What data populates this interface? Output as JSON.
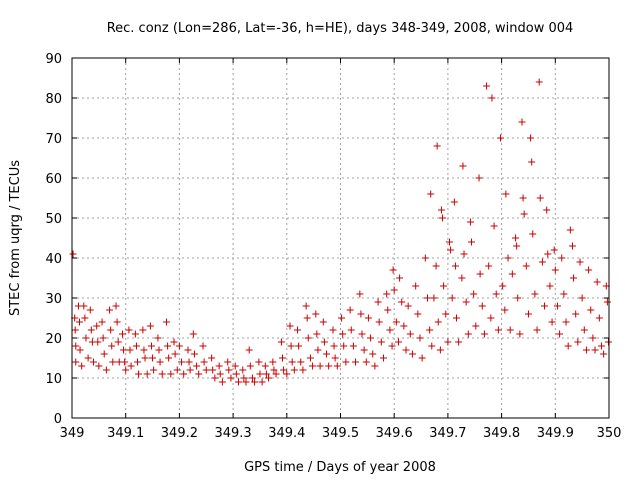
{
  "chart_data": {
    "type": "scatter",
    "title": "Rec. conz (Lon=286, Lat=-36, h=HE), days 348-349, 2008, window 004",
    "xlabel": "GPS time / Days of year 2008",
    "ylabel": "STEC from uqrg / TECUs",
    "xlim": [
      349,
      350
    ],
    "ylim": [
      0,
      90
    ],
    "xticks": [
      349,
      349.1,
      349.2,
      349.3,
      349.4,
      349.5,
      349.6,
      349.7,
      349.8,
      349.9,
      350
    ],
    "xtick_labels": [
      "349",
      "349.1",
      "349.2",
      "349.3",
      "349.4",
      "349.5",
      "349.6",
      "349.7",
      "349.8",
      "349.9",
      "350"
    ],
    "yticks": [
      0,
      10,
      20,
      30,
      40,
      50,
      60,
      70,
      80,
      90
    ],
    "ytick_labels": [
      "0",
      "10",
      "20",
      "30",
      "40",
      "50",
      "60",
      "70",
      "80",
      "90"
    ],
    "grid": true,
    "marker": "+",
    "color": "#cc0000",
    "series": [
      {
        "name": "STEC",
        "points": [
          [
            349.002,
            41
          ],
          [
            349.005,
            25
          ],
          [
            349.006,
            22
          ],
          [
            349.007,
            18
          ],
          [
            349.007,
            14
          ],
          [
            349.012,
            28
          ],
          [
            349.014,
            24
          ],
          [
            349.015,
            17
          ],
          [
            349.018,
            13
          ],
          [
            349.022,
            28
          ],
          [
            349.024,
            25
          ],
          [
            349.026,
            20
          ],
          [
            349.03,
            15
          ],
          [
            349.034,
            27
          ],
          [
            349.036,
            22
          ],
          [
            349.038,
            19
          ],
          [
            349.04,
            14
          ],
          [
            349.046,
            23
          ],
          [
            349.048,
            19
          ],
          [
            349.05,
            13
          ],
          [
            349.056,
            24
          ],
          [
            349.058,
            20
          ],
          [
            349.06,
            16
          ],
          [
            349.064,
            12
          ],
          [
            349.07,
            27
          ],
          [
            349.072,
            22
          ],
          [
            349.074,
            18
          ],
          [
            349.076,
            14
          ],
          [
            349.082,
            28
          ],
          [
            349.084,
            24
          ],
          [
            349.086,
            19
          ],
          [
            349.088,
            14
          ],
          [
            349.094,
            21
          ],
          [
            349.096,
            17
          ],
          [
            349.098,
            14
          ],
          [
            349.1,
            12
          ],
          [
            349.106,
            22
          ],
          [
            349.108,
            17
          ],
          [
            349.11,
            13
          ],
          [
            349.118,
            21
          ],
          [
            349.12,
            18
          ],
          [
            349.122,
            14
          ],
          [
            349.124,
            11
          ],
          [
            349.132,
            22
          ],
          [
            349.134,
            17
          ],
          [
            349.136,
            15
          ],
          [
            349.14,
            11
          ],
          [
            349.146,
            23
          ],
          [
            349.148,
            18
          ],
          [
            349.15,
            15
          ],
          [
            349.152,
            12
          ],
          [
            349.16,
            20
          ],
          [
            349.162,
            17
          ],
          [
            349.164,
            14
          ],
          [
            349.168,
            11
          ],
          [
            349.176,
            24
          ],
          [
            349.178,
            18
          ],
          [
            349.18,
            15
          ],
          [
            349.184,
            11
          ],
          [
            349.19,
            19
          ],
          [
            349.192,
            16
          ],
          [
            349.196,
            12
          ],
          [
            349.2,
            18
          ],
          [
            349.204,
            14
          ],
          [
            349.208,
            11
          ],
          [
            349.216,
            17
          ],
          [
            349.218,
            14
          ],
          [
            349.22,
            12
          ],
          [
            349.226,
            21
          ],
          [
            349.228,
            16
          ],
          [
            349.232,
            13
          ],
          [
            349.236,
            11
          ],
          [
            349.244,
            18
          ],
          [
            349.246,
            14
          ],
          [
            349.25,
            12
          ],
          [
            349.26,
            15
          ],
          [
            349.262,
            12
          ],
          [
            349.266,
            10
          ],
          [
            349.274,
            13
          ],
          [
            349.276,
            11
          ],
          [
            349.28,
            9
          ],
          [
            349.29,
            14
          ],
          [
            349.292,
            12
          ],
          [
            349.296,
            10
          ],
          [
            349.304,
            13
          ],
          [
            349.306,
            11
          ],
          [
            349.31,
            9
          ],
          [
            349.318,
            12
          ],
          [
            349.32,
            10
          ],
          [
            349.324,
            9
          ],
          [
            349.33,
            17
          ],
          [
            349.332,
            13
          ],
          [
            349.336,
            10
          ],
          [
            349.34,
            9
          ],
          [
            349.348,
            14
          ],
          [
            349.35,
            11
          ],
          [
            349.354,
            9
          ],
          [
            349.36,
            13
          ],
          [
            349.362,
            11
          ],
          [
            349.366,
            10
          ],
          [
            349.374,
            14
          ],
          [
            349.376,
            12
          ],
          [
            349.38,
            11
          ],
          [
            349.39,
            19
          ],
          [
            349.392,
            15
          ],
          [
            349.394,
            12
          ],
          [
            349.4,
            11
          ],
          [
            349.406,
            23
          ],
          [
            349.408,
            18
          ],
          [
            349.41,
            14
          ],
          [
            349.414,
            12
          ],
          [
            349.42,
            22
          ],
          [
            349.422,
            18
          ],
          [
            349.426,
            14
          ],
          [
            349.43,
            12
          ],
          [
            349.436,
            28
          ],
          [
            349.438,
            25
          ],
          [
            349.44,
            20
          ],
          [
            349.444,
            15
          ],
          [
            349.448,
            13
          ],
          [
            349.454,
            26
          ],
          [
            349.456,
            21
          ],
          [
            349.458,
            17
          ],
          [
            349.462,
            13
          ],
          [
            349.468,
            24
          ],
          [
            349.47,
            19
          ],
          [
            349.474,
            16
          ],
          [
            349.478,
            13
          ],
          [
            349.486,
            22
          ],
          [
            349.488,
            18
          ],
          [
            349.49,
            15
          ],
          [
            349.494,
            13
          ],
          [
            349.502,
            25
          ],
          [
            349.504,
            21
          ],
          [
            349.506,
            18
          ],
          [
            349.51,
            14
          ],
          [
            349.518,
            27
          ],
          [
            349.52,
            22
          ],
          [
            349.524,
            18
          ],
          [
            349.528,
            14
          ],
          [
            349.536,
            31
          ],
          [
            349.538,
            26
          ],
          [
            349.54,
            21
          ],
          [
            349.544,
            17
          ],
          [
            349.548,
            14
          ],
          [
            349.552,
            25
          ],
          [
            349.556,
            20
          ],
          [
            349.56,
            16
          ],
          [
            349.564,
            13
          ],
          [
            349.57,
            29
          ],
          [
            349.572,
            24
          ],
          [
            349.576,
            19
          ],
          [
            349.58,
            15
          ],
          [
            349.586,
            31
          ],
          [
            349.588,
            27
          ],
          [
            349.592,
            22
          ],
          [
            349.596,
            18
          ],
          [
            349.598,
            37
          ],
          [
            349.6,
            32
          ],
          [
            349.604,
            24
          ],
          [
            349.608,
            19
          ],
          [
            349.61,
            35
          ],
          [
            349.614,
            29
          ],
          [
            349.618,
            23
          ],
          [
            349.622,
            17
          ],
          [
            349.626,
            28
          ],
          [
            349.63,
            21
          ],
          [
            349.634,
            16
          ],
          [
            349.64,
            33
          ],
          [
            349.644,
            26
          ],
          [
            349.648,
            20
          ],
          [
            349.652,
            15
          ],
          [
            349.658,
            40
          ],
          [
            349.662,
            30
          ],
          [
            349.666,
            22
          ],
          [
            349.668,
            56
          ],
          [
            349.67,
            18
          ],
          [
            349.674,
            30
          ],
          [
            349.678,
            38
          ],
          [
            349.68,
            68
          ],
          [
            349.682,
            24
          ],
          [
            349.686,
            17
          ],
          [
            349.688,
            52
          ],
          [
            349.69,
            50
          ],
          [
            349.692,
            33
          ],
          [
            349.696,
            26
          ],
          [
            349.7,
            19
          ],
          [
            349.703,
            44
          ],
          [
            349.705,
            42
          ],
          [
            349.708,
            30
          ],
          [
            349.712,
            54
          ],
          [
            349.714,
            38
          ],
          [
            349.716,
            25
          ],
          [
            349.72,
            19
          ],
          [
            349.726,
            35
          ],
          [
            349.728,
            63
          ],
          [
            349.73,
            41
          ],
          [
            349.734,
            29
          ],
          [
            349.738,
            21
          ],
          [
            349.742,
            49
          ],
          [
            349.744,
            44
          ],
          [
            349.748,
            31
          ],
          [
            349.752,
            23
          ],
          [
            349.758,
            60
          ],
          [
            349.76,
            36
          ],
          [
            349.764,
            28
          ],
          [
            349.768,
            21
          ],
          [
            349.772,
            83
          ],
          [
            349.776,
            38
          ],
          [
            349.78,
            25
          ],
          [
            349.782,
            80
          ],
          [
            349.786,
            48
          ],
          [
            349.79,
            31
          ],
          [
            349.794,
            22
          ],
          [
            349.798,
            70
          ],
          [
            349.802,
            33
          ],
          [
            349.806,
            27
          ],
          [
            349.808,
            56
          ],
          [
            349.812,
            40
          ],
          [
            349.816,
            22
          ],
          [
            349.82,
            36
          ],
          [
            349.826,
            45
          ],
          [
            349.828,
            43
          ],
          [
            349.83,
            30
          ],
          [
            349.834,
            21
          ],
          [
            349.838,
            74
          ],
          [
            349.84,
            55
          ],
          [
            349.842,
            51
          ],
          [
            349.846,
            38
          ],
          [
            349.85,
            26
          ],
          [
            349.854,
            70
          ],
          [
            349.856,
            64
          ],
          [
            349.858,
            46
          ],
          [
            349.862,
            31
          ],
          [
            349.866,
            22
          ],
          [
            349.87,
            84
          ],
          [
            349.872,
            55
          ],
          [
            349.876,
            39
          ],
          [
            349.88,
            28
          ],
          [
            349.884,
            52
          ],
          [
            349.886,
            41
          ],
          [
            349.89,
            33
          ],
          [
            349.894,
            24
          ],
          [
            349.898,
            42
          ],
          [
            349.9,
            37
          ],
          [
            349.904,
            28
          ],
          [
            349.908,
            21
          ],
          [
            349.912,
            40
          ],
          [
            349.916,
            31
          ],
          [
            349.92,
            24
          ],
          [
            349.924,
            18
          ],
          [
            349.928,
            47
          ],
          [
            349.932,
            43
          ],
          [
            349.934,
            35
          ],
          [
            349.938,
            26
          ],
          [
            349.942,
            19
          ],
          [
            349.946,
            39
          ],
          [
            349.95,
            30
          ],
          [
            349.954,
            22
          ],
          [
            349.958,
            17
          ],
          [
            349.962,
            37
          ],
          [
            349.966,
            27
          ],
          [
            349.97,
            20
          ],
          [
            349.974,
            17
          ],
          [
            349.978,
            34
          ],
          [
            349.982,
            25
          ],
          [
            349.986,
            18
          ],
          [
            349.99,
            16
          ],
          [
            349.995,
            33
          ],
          [
            349.997,
            29
          ],
          [
            349.999,
            19
          ]
        ]
      }
    ]
  }
}
